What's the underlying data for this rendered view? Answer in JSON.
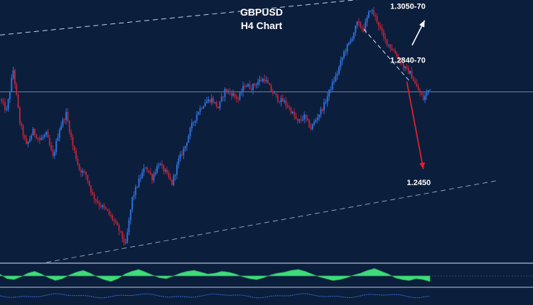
{
  "chart_data": {
    "type": "candlestick",
    "title": "GBPUSD",
    "subtitle": "H4 Chart",
    "grid": false,
    "colors": {
      "background": "#0b1e3c",
      "bull_candle": "#2f6fd6",
      "bear_candle": "#b3243a",
      "channel_line": "#c9d3e6",
      "support_line": "#8fa0bf",
      "up_arrow": "#ffffff",
      "down_arrow": "#e0202a",
      "oscillator_fill": "#3ddc7a",
      "separator": "#9aa6bb"
    },
    "y_range": [
      1.22,
      1.31
    ],
    "price_path": [
      [
        0,
        1.276
      ],
      [
        1,
        1.272
      ],
      [
        2,
        1.286
      ],
      [
        3,
        1.268
      ],
      [
        4,
        1.26
      ],
      [
        5,
        1.265
      ],
      [
        6,
        1.262
      ],
      [
        7,
        1.264
      ],
      [
        8,
        1.256
      ],
      [
        9,
        1.266
      ],
      [
        10,
        1.271
      ],
      [
        11,
        1.26
      ],
      [
        12,
        1.252
      ],
      [
        13,
        1.25
      ],
      [
        14,
        1.243
      ],
      [
        15,
        1.24
      ],
      [
        16,
        1.238
      ],
      [
        17,
        1.235
      ],
      [
        18,
        1.231
      ],
      [
        19,
        1.226
      ],
      [
        20,
        1.242
      ],
      [
        21,
        1.248
      ],
      [
        22,
        1.253
      ],
      [
        23,
        1.249
      ],
      [
        24,
        1.254
      ],
      [
        25,
        1.251
      ],
      [
        26,
        1.247
      ],
      [
        27,
        1.255
      ],
      [
        28,
        1.26
      ],
      [
        29,
        1.267
      ],
      [
        30,
        1.272
      ],
      [
        31,
        1.275
      ],
      [
        32,
        1.276
      ],
      [
        33,
        1.273
      ],
      [
        34,
        1.279
      ],
      [
        35,
        1.278
      ],
      [
        36,
        1.276
      ],
      [
        37,
        1.281
      ],
      [
        38,
        1.28
      ],
      [
        39,
        1.282
      ],
      [
        40,
        1.283
      ],
      [
        41,
        1.279
      ],
      [
        42,
        1.276
      ],
      [
        43,
        1.275
      ],
      [
        44,
        1.272
      ],
      [
        45,
        1.268
      ],
      [
        46,
        1.27
      ],
      [
        47,
        1.266
      ],
      [
        48,
        1.27
      ],
      [
        49,
        1.274
      ],
      [
        50,
        1.28
      ],
      [
        51,
        1.285
      ],
      [
        52,
        1.292
      ],
      [
        53,
        1.296
      ],
      [
        54,
        1.302
      ],
      [
        55,
        1.3
      ],
      [
        56,
        1.307
      ],
      [
        57,
        1.303
      ],
      [
        58,
        1.297
      ],
      [
        59,
        1.294
      ],
      [
        60,
        1.291
      ],
      [
        61,
        1.287
      ],
      [
        62,
        1.285
      ],
      [
        63,
        1.28
      ],
      [
        64,
        1.276
      ],
      [
        65,
        1.28
      ]
    ],
    "channel_lines": [
      {
        "name": "upper-channel",
        "start": [
          0,
          1.298
        ],
        "end": [
          67,
          1.313
        ]
      },
      {
        "name": "lower-channel",
        "start": [
          7,
          1.22
        ],
        "end": [
          75,
          1.248
        ]
      }
    ],
    "trendline": {
      "start": [
        55,
        1.3
      ],
      "end": [
        62,
        1.282
      ]
    },
    "horizontal_level": 1.2785,
    "annotations": [
      {
        "label": "1.3050-70",
        "at": [
          59.0,
          1.307
        ]
      },
      {
        "label": "1.2840-70",
        "at": [
          59.0,
          1.2885
        ]
      },
      {
        "label": "1.2450",
        "at": [
          61.5,
          1.2465
        ]
      }
    ],
    "arrows": [
      {
        "kind": "up",
        "from": [
          62.3,
          1.2945
        ],
        "to": [
          64.2,
          1.303
        ]
      },
      {
        "kind": "down",
        "from": [
          61.5,
          1.282
        ],
        "to": [
          64.0,
          1.252
        ]
      }
    ],
    "oscillator": [
      0.2,
      -0.3,
      -0.4,
      -0.1,
      0.3,
      0.5,
      0.2,
      -0.2,
      -0.5,
      -0.3,
      0.1,
      0.4,
      0.6,
      0.3,
      -0.1,
      -0.4,
      -0.6,
      -0.3,
      0.2,
      0.5,
      0.7,
      0.4,
      0.1,
      -0.2,
      -0.3,
      0.0,
      0.3,
      0.5,
      0.6,
      0.4,
      0.2,
      0.3,
      0.5,
      0.4,
      0.2,
      -0.1,
      -0.3,
      -0.4,
      -0.2,
      0.1,
      0.3,
      0.4,
      0.6,
      0.7,
      0.5,
      0.2,
      -0.1,
      -0.3,
      -0.5,
      -0.4,
      -0.2,
      0.1,
      0.3,
      0.6,
      0.8,
      0.5,
      0.2,
      -0.2,
      -0.4,
      -0.5,
      -0.3,
      -0.4,
      -0.6
    ]
  }
}
